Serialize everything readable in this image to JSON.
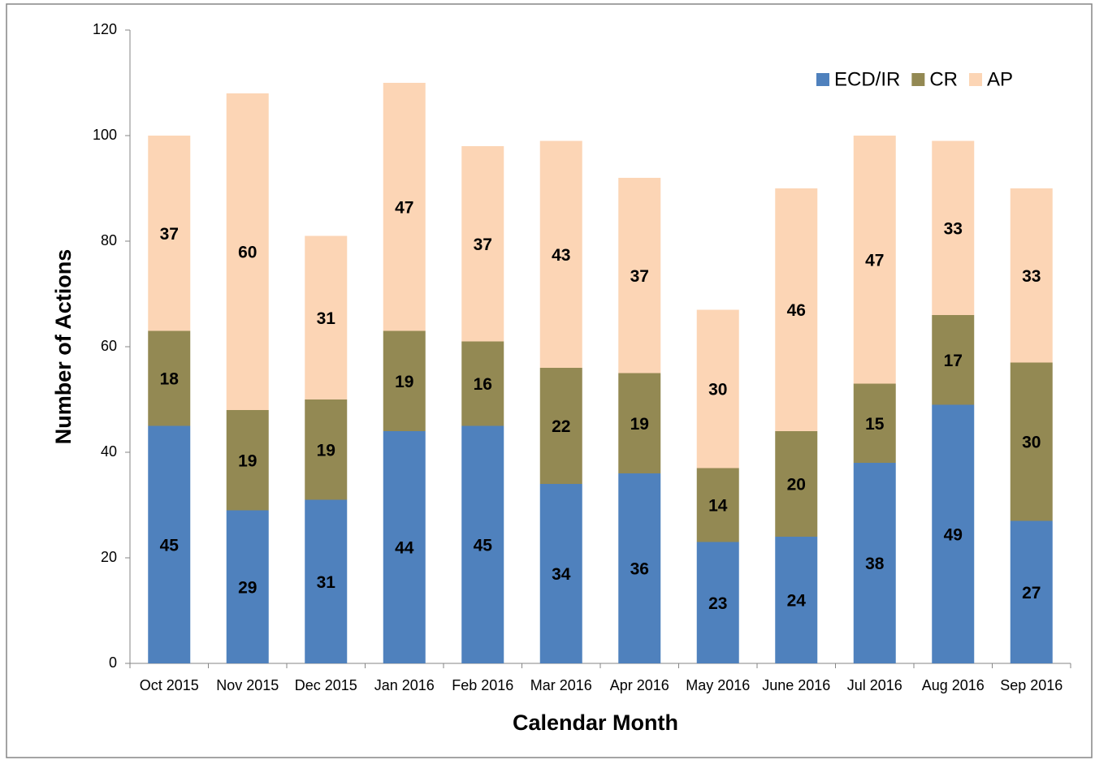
{
  "chart_data": {
    "type": "stacked_bar",
    "xlabel": "Calendar Month",
    "ylabel": "Number of Actions",
    "categories": [
      "Oct 2015",
      "Nov 2015",
      "Dec 2015",
      "Jan 2016",
      "Feb 2016",
      "Mar 2016",
      "Apr 2016",
      "May 2016",
      "June 2016",
      "Jul 2016",
      "Aug 2016",
      "Sep 2016"
    ],
    "series": [
      {
        "name": "ECD/IR",
        "color": "#4f81bd",
        "values": [
          45,
          29,
          31,
          44,
          45,
          34,
          36,
          23,
          24,
          38,
          49,
          27
        ]
      },
      {
        "name": "CR",
        "color": "#938953",
        "values": [
          18,
          19,
          19,
          19,
          16,
          22,
          19,
          14,
          20,
          15,
          17,
          30
        ]
      },
      {
        "name": "AP",
        "color": "#fcd5b5",
        "values": [
          37,
          60,
          31,
          47,
          37,
          43,
          37,
          30,
          46,
          47,
          33,
          33
        ]
      }
    ],
    "ylim": [
      0,
      120
    ],
    "yticks": [
      0,
      20,
      40,
      60,
      80,
      100,
      120
    ],
    "grid": false,
    "legend": "top-right"
  }
}
